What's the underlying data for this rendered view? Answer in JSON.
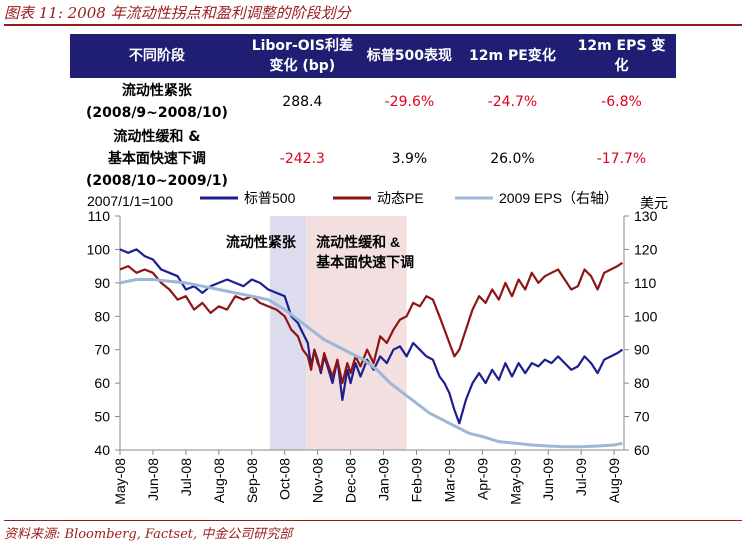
{
  "title": "图表 11: 2008 年流动性拐点和盈利调整的阶段划分",
  "source": "资料来源: Bloomberg, Factset, 中金公司研究部",
  "table": {
    "headers": [
      "不同阶段",
      "Libor-OIS利差变化 (bp)",
      "标普500表现",
      "12m PE变化",
      "12m EPS 变化"
    ],
    "rows": [
      {
        "label_line1": "流动性紧张",
        "label_line2": "(2008/9~2008/10)",
        "label_line3": "",
        "libor": "288.4",
        "sp500": "-29.6%",
        "pe": "-24.7%",
        "eps": "-6.8%"
      },
      {
        "label_line1": "流动性缓和 &",
        "label_line2": "基本面快速下调",
        "label_line3": "(2008/10~2009/1)",
        "libor": "-242.3",
        "sp500": "3.9%",
        "pe": "26.0%",
        "eps": "-17.7%"
      }
    ]
  },
  "colors": {
    "header_bg": "#1f1e73",
    "negative": "#e0001b",
    "title": "#9b1a1a",
    "sp500": "#1c1f8f",
    "pe": "#8e1516",
    "eps": "#9db7d6",
    "band1": "#dcdcee",
    "band2": "#f3dfdf"
  },
  "chart_data": {
    "type": "line",
    "title": "",
    "left_axis_label": "2007/1/1=100",
    "right_axis_label": "美元",
    "left_ylim": [
      40,
      110
    ],
    "right_ylim": [
      60,
      130
    ],
    "left_ticks": [
      "40",
      "50",
      "60",
      "70",
      "80",
      "90",
      "100",
      "110"
    ],
    "right_ticks": [
      "60",
      "70",
      "80",
      "90",
      "100",
      "110",
      "120",
      "130"
    ],
    "x_ticks": [
      "May-08",
      "Jun-08",
      "Jul-08",
      "Aug-08",
      "Sep-08",
      "Oct-08",
      "Nov-08",
      "Dec-08",
      "Jan-09",
      "Feb-09",
      "Mar-09",
      "Apr-09",
      "May-09",
      "Jun-09",
      "Jul-09",
      "Aug-09"
    ],
    "x_range": [
      0,
      15.3
    ],
    "shaded_periods": [
      {
        "label": "流动性紧张",
        "from": 4.55,
        "to": 5.65
      },
      {
        "label_line1": "流动性缓和 &",
        "label_line2": "基本面快速下调",
        "from": 5.65,
        "to": 8.7
      }
    ],
    "series": [
      {
        "name": "标普500",
        "axis": "left",
        "x": [
          0,
          0.25,
          0.5,
          0.75,
          1,
          1.25,
          1.5,
          1.75,
          2,
          2.25,
          2.5,
          2.75,
          3,
          3.25,
          3.5,
          3.75,
          4,
          4.25,
          4.5,
          4.75,
          5,
          5.2,
          5.4,
          5.55,
          5.7,
          5.8,
          5.9,
          6.0,
          6.1,
          6.2,
          6.3,
          6.45,
          6.6,
          6.75,
          6.9,
          7.0,
          7.15,
          7.3,
          7.5,
          7.7,
          7.9,
          8.1,
          8.3,
          8.5,
          8.7,
          8.9,
          9.1,
          9.3,
          9.5,
          9.7,
          9.85,
          10.0,
          10.15,
          10.3,
          10.5,
          10.7,
          10.9,
          11.1,
          11.3,
          11.5,
          11.7,
          11.9,
          12.1,
          12.3,
          12.5,
          12.7,
          12.9,
          13.1,
          13.3,
          13.5,
          13.7,
          13.9,
          14.1,
          14.3,
          14.5,
          14.7,
          14.9,
          15.1,
          15.25
        ],
        "y": [
          100,
          99,
          100,
          98,
          97,
          94,
          93,
          92,
          88,
          89,
          87,
          89,
          90,
          91,
          90,
          89,
          91,
          90,
          88,
          87,
          86,
          80,
          78,
          75,
          72,
          65,
          70,
          67,
          63,
          68,
          65,
          60,
          67,
          55,
          64,
          60,
          66,
          62,
          67,
          64,
          68,
          66,
          70,
          71,
          68,
          72,
          70,
          68,
          67,
          62,
          60,
          57,
          52,
          48,
          55,
          60,
          63,
          60,
          64,
          61,
          66,
          62,
          66,
          63,
          66,
          65,
          67,
          66,
          68,
          66,
          64,
          65,
          68,
          66,
          63,
          67,
          68,
          69,
          70
        ]
      },
      {
        "name": "动态PE",
        "axis": "left",
        "x": [
          0,
          0.25,
          0.5,
          0.75,
          1,
          1.25,
          1.5,
          1.75,
          2,
          2.25,
          2.5,
          2.75,
          3,
          3.25,
          3.5,
          3.75,
          4,
          4.25,
          4.5,
          4.75,
          5,
          5.2,
          5.4,
          5.55,
          5.7,
          5.8,
          5.9,
          6.0,
          6.1,
          6.2,
          6.3,
          6.45,
          6.6,
          6.75,
          6.9,
          7.0,
          7.15,
          7.3,
          7.5,
          7.7,
          7.9,
          8.1,
          8.3,
          8.5,
          8.7,
          8.9,
          9.1,
          9.3,
          9.5,
          9.7,
          9.85,
          10.0,
          10.15,
          10.3,
          10.5,
          10.7,
          10.9,
          11.1,
          11.3,
          11.5,
          11.7,
          11.9,
          12.1,
          12.3,
          12.5,
          12.7,
          12.9,
          13.1,
          13.3,
          13.5,
          13.7,
          13.9,
          14.1,
          14.3,
          14.5,
          14.7,
          14.9,
          15.1,
          15.25
        ],
        "y": [
          94,
          95,
          93,
          94,
          93,
          90,
          88,
          85,
          86,
          82,
          84,
          81,
          83,
          82,
          86,
          85,
          86,
          84,
          83,
          82,
          80,
          76,
          74,
          70,
          68,
          64,
          70,
          66,
          64,
          69,
          66,
          62,
          67,
          60,
          66,
          63,
          68,
          65,
          70,
          66,
          74,
          72,
          76,
          79,
          80,
          84,
          83,
          86,
          85,
          80,
          76,
          72,
          68,
          70,
          76,
          82,
          86,
          84,
          88,
          85,
          90,
          86,
          91,
          88,
          93,
          90,
          92,
          93,
          94,
          91,
          88,
          89,
          94,
          92,
          88,
          93,
          94,
          95,
          96
        ]
      },
      {
        "name": "2009 EPS (右轴)",
        "axis": "right",
        "x": [
          0,
          0.5,
          1,
          1.5,
          2,
          2.5,
          3,
          3.5,
          4,
          4.5,
          5,
          5.4,
          5.8,
          6.2,
          6.6,
          7.0,
          7.4,
          7.8,
          8.2,
          8.6,
          9.0,
          9.4,
          9.8,
          10.2,
          10.6,
          11.0,
          11.5,
          12.0,
          12.5,
          13.0,
          13.5,
          14.0,
          14.5,
          15.0,
          15.25
        ],
        "y": [
          110,
          111,
          111,
          110.5,
          110,
          109,
          108,
          107,
          106,
          105,
          102,
          99,
          96,
          93,
          91,
          89,
          87,
          84,
          80,
          77,
          74,
          71,
          69,
          67,
          65,
          64,
          62.5,
          62,
          61.5,
          61.2,
          61,
          61,
          61.2,
          61.5,
          62
        ]
      }
    ],
    "legend": {
      "position": "top",
      "entries": [
        "标普500",
        "动态PE",
        "2009 EPS（右轴）"
      ]
    }
  }
}
